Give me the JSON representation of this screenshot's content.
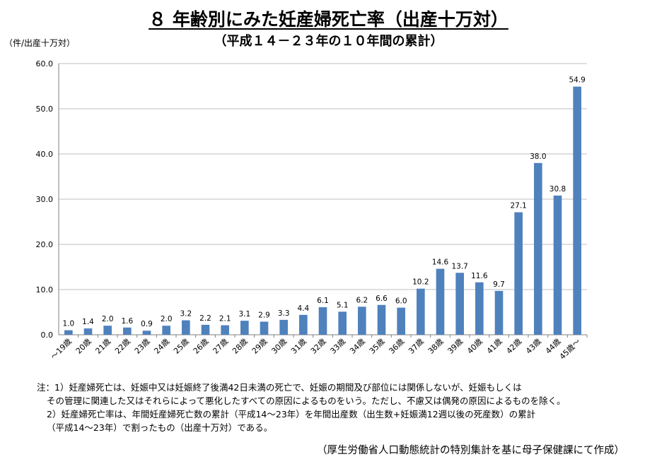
{
  "title": "８ 年齢別にみた妊産婦死亡率（出産十万対）",
  "subtitle": "（平成１４－２３年の１０年間の累計）",
  "chart_data": {
    "type": "bar",
    "unit_label": "（件/出産十万対）",
    "categories": [
      "～19歳",
      "20歳",
      "21歳",
      "22歳",
      "23歳",
      "24歳",
      "25歳",
      "26歳",
      "27歳",
      "28歳",
      "29歳",
      "30歳",
      "31歳",
      "32歳",
      "33歳",
      "34歳",
      "35歳",
      "36歳",
      "37歳",
      "38歳",
      "39歳",
      "40歳",
      "41歳",
      "42歳",
      "43歳",
      "44歳",
      "45歳～"
    ],
    "values": [
      1.0,
      1.4,
      2.0,
      1.6,
      0.9,
      2.0,
      3.2,
      2.2,
      2.1,
      3.1,
      2.9,
      3.3,
      4.4,
      6.1,
      5.1,
      6.2,
      6.6,
      6.0,
      10.2,
      14.6,
      13.7,
      11.6,
      9.7,
      27.1,
      38.0,
      30.8,
      54.9
    ],
    "value_labels": [
      "1.0",
      "1.4",
      "2.0",
      "1.6",
      "0.9",
      "2.0",
      "3.2",
      "2.2",
      "2.1",
      "3.1",
      "2.9",
      "3.3",
      "4.4",
      "6.1",
      "5.1",
      "6.2",
      "6.6",
      "6.0",
      "10.2",
      "14.6",
      "13.7",
      "11.6",
      "9.7",
      "27.1",
      "38.0",
      "30.8",
      "54.9"
    ],
    "ylim": [
      0,
      60
    ],
    "yticks": [
      "0.0",
      "10.0",
      "20.0",
      "30.0",
      "40.0",
      "50.0",
      "60.0"
    ],
    "grid": true,
    "bar_color": "#4f81bd"
  },
  "notes": [
    "注：1）妊産婦死亡は、妊娠中又は妊娠終了後満42日未満の死亡で、妊娠の期間及び部位には関係しないが、妊娠もしくは",
    "その管理に関連した又はそれらによって悪化したすべての原因によるものをいう。ただし、不慮又は偶発の原因によるものを除く。",
    "2）妊産婦死亡率は、年間妊産婦死亡数の累計（平成14～23年）を年間出産数（出生数+妊娠満12週以後の死産数）の累計",
    "（平成14～23年）で割ったもの（出産十万対）である。"
  ],
  "source": "（厚生労働省人口動態統計の特別集計を基に母子保健課にて作成）"
}
